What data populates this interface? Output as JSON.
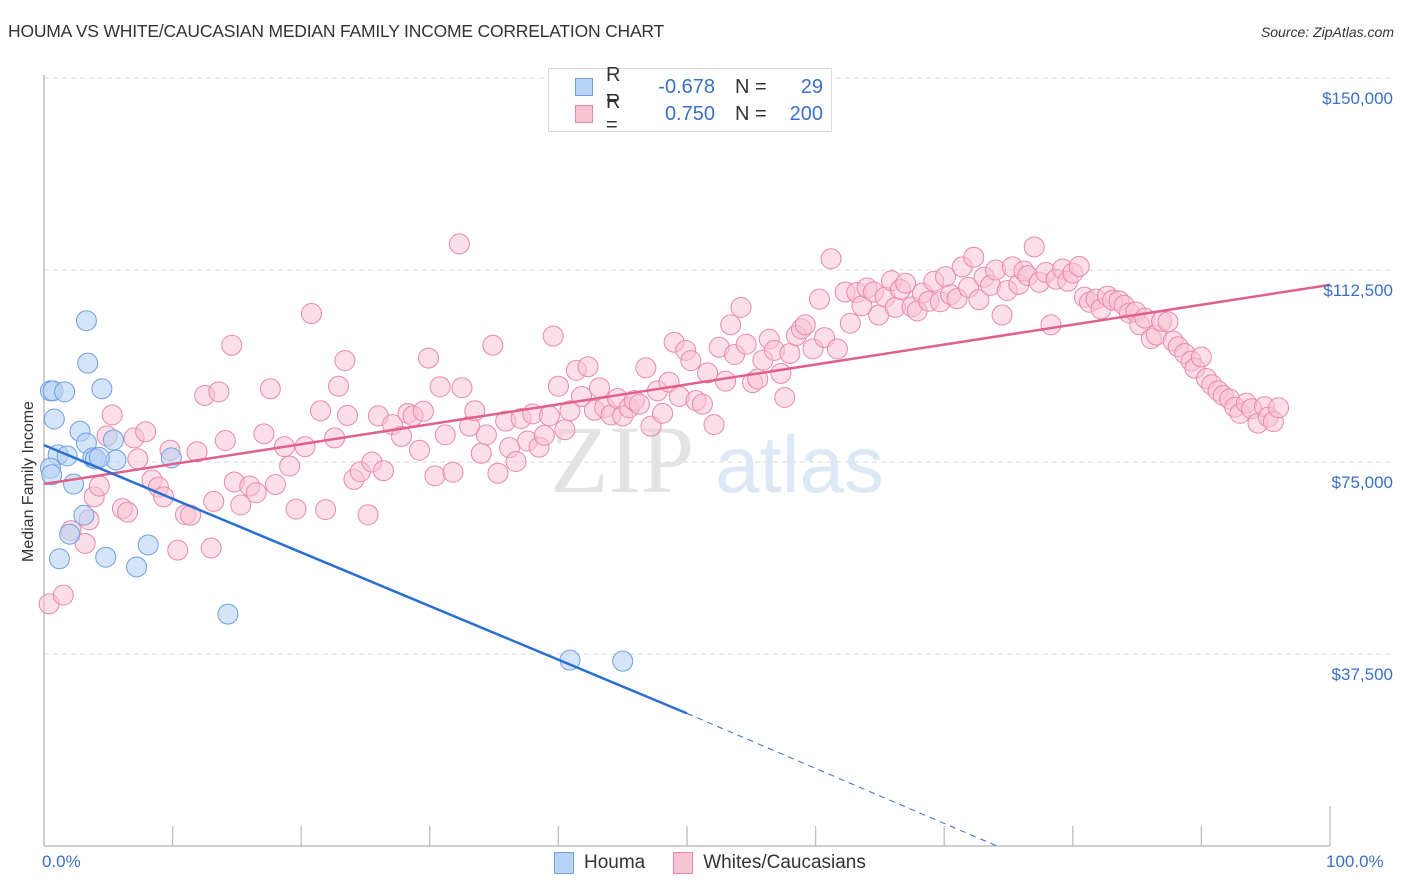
{
  "header": {
    "title": "HOUMA VS WHITE/CAUCASIAN MEDIAN FAMILY INCOME CORRELATION CHART",
    "source": "Source: ZipAtlas.com"
  },
  "legend_top": [
    {
      "r_label": "R =",
      "r_value": "-0.678",
      "n_label": "N =",
      "n_value": "29"
    },
    {
      "r_label": "R =",
      "r_value": "0.750",
      "n_label": "N =",
      "n_value": "200"
    }
  ],
  "legend_bottom": [
    "Houma",
    "Whites/Caucasians"
  ],
  "watermark": {
    "zip": "ZIP",
    "atlas": "atlas"
  },
  "colors": {
    "houma_fill": "#b8d2f5",
    "houma_stroke": "#6f9fe0",
    "houma_line": "#2a6fd0",
    "white_fill": "#f8c3d3",
    "white_stroke": "#e889a8",
    "white_line": "#e0608a",
    "tick_text": "#3a70c8"
  },
  "chart_data": {
    "type": "scatter",
    "title": "HOUMA VS WHITE/CAUCASIAN MEDIAN FAMILY INCOME CORRELATION CHART",
    "xlabel": "",
    "ylabel": "Median Family Income",
    "xlim": [
      0,
      100
    ],
    "ylim": [
      0,
      155000
    ],
    "x_tick_labels": [
      "0.0%",
      "100.0%"
    ],
    "y_ticks": [
      37500,
      75000,
      112500,
      150000
    ],
    "y_tick_labels": [
      "$37,500",
      "$75,000",
      "$112,500",
      "$150,000"
    ],
    "grid": true,
    "legend_placement": "top-center",
    "series": [
      {
        "name": "Houma",
        "R": -0.678,
        "N": 29,
        "trend": {
          "x0": 0,
          "y0": 78300,
          "x1": 50,
          "y1": 25900,
          "dashed_to_x": 74.1,
          "dashed_to_y": 0
        },
        "points": [
          [
            3.3,
            102600
          ],
          [
            3.4,
            94300
          ],
          [
            0.5,
            88900
          ],
          [
            0.7,
            88900
          ],
          [
            1.6,
            88700
          ],
          [
            4.5,
            89300
          ],
          [
            0.8,
            83400
          ],
          [
            2.8,
            81000
          ],
          [
            5.4,
            79300
          ],
          [
            3.3,
            78700
          ],
          [
            1.1,
            76400
          ],
          [
            1.8,
            76200
          ],
          [
            3.8,
            75800
          ],
          [
            4.0,
            75600
          ],
          [
            5.6,
            75400
          ],
          [
            9.9,
            75800
          ],
          [
            0.5,
            73800
          ],
          [
            2.3,
            70700
          ],
          [
            3.1,
            64600
          ],
          [
            2.0,
            60900
          ],
          [
            4.8,
            56400
          ],
          [
            1.2,
            56100
          ],
          [
            7.2,
            54500
          ],
          [
            8.1,
            58800
          ],
          [
            14.3,
            45300
          ],
          [
            40.9,
            36300
          ],
          [
            45.0,
            36100
          ],
          [
            0.6,
            72500
          ],
          [
            4.3,
            75900
          ]
        ]
      },
      {
        "name": "Whites/Caucasians",
        "R": 0.75,
        "N": 200,
        "trend": {
          "x0": 0,
          "y0": 70700,
          "x1": 100,
          "y1": 109600
        },
        "points": [
          [
            0.4,
            47300
          ],
          [
            1.5,
            49000
          ],
          [
            2.1,
            61600
          ],
          [
            3.2,
            59100
          ],
          [
            3.5,
            63700
          ],
          [
            3.9,
            68200
          ],
          [
            4.3,
            70300
          ],
          [
            4.9,
            80100
          ],
          [
            5.3,
            84200
          ],
          [
            6.1,
            65900
          ],
          [
            6.5,
            65200
          ],
          [
            7.0,
            79700
          ],
          [
            7.3,
            75600
          ],
          [
            7.9,
            80900
          ],
          [
            8.4,
            71500
          ],
          [
            8.9,
            70100
          ],
          [
            9.3,
            68200
          ],
          [
            9.8,
            77300
          ],
          [
            10.4,
            57800
          ],
          [
            11.0,
            64700
          ],
          [
            11.4,
            64600
          ],
          [
            11.9,
            77000
          ],
          [
            12.5,
            88000
          ],
          [
            13.0,
            58200
          ],
          [
            13.2,
            67300
          ],
          [
            13.6,
            88700
          ],
          [
            14.1,
            79200
          ],
          [
            14.6,
            97800
          ],
          [
            14.8,
            71100
          ],
          [
            15.3,
            66600
          ],
          [
            16.0,
            70300
          ],
          [
            16.5,
            69000
          ],
          [
            17.1,
            80500
          ],
          [
            17.6,
            89300
          ],
          [
            18.0,
            70600
          ],
          [
            18.7,
            78000
          ],
          [
            19.1,
            74200
          ],
          [
            19.6,
            65800
          ],
          [
            20.3,
            78000
          ],
          [
            20.8,
            104000
          ],
          [
            21.5,
            85000
          ],
          [
            21.9,
            65700
          ],
          [
            22.6,
            79700
          ],
          [
            22.9,
            89800
          ],
          [
            23.4,
            94800
          ],
          [
            23.6,
            84100
          ],
          [
            24.1,
            71600
          ],
          [
            24.6,
            73100
          ],
          [
            25.2,
            64700
          ],
          [
            25.5,
            75000
          ],
          [
            26.0,
            84000
          ],
          [
            26.4,
            73300
          ],
          [
            27.1,
            82300
          ],
          [
            27.8,
            80000
          ],
          [
            28.3,
            84500
          ],
          [
            28.7,
            84000
          ],
          [
            29.2,
            77300
          ],
          [
            29.5,
            84900
          ],
          [
            29.9,
            95300
          ],
          [
            30.4,
            72300
          ],
          [
            30.8,
            89700
          ],
          [
            31.2,
            80300
          ],
          [
            31.8,
            73000
          ],
          [
            32.3,
            117600
          ],
          [
            32.5,
            89500
          ],
          [
            33.1,
            82000
          ],
          [
            33.5,
            85000
          ],
          [
            34.0,
            76700
          ],
          [
            34.4,
            80300
          ],
          [
            34.9,
            97800
          ],
          [
            35.3,
            72800
          ],
          [
            35.9,
            83000
          ],
          [
            36.2,
            77800
          ],
          [
            36.7,
            75100
          ],
          [
            37.1,
            83500
          ],
          [
            37.6,
            79100
          ],
          [
            38.0,
            84400
          ],
          [
            38.5,
            77900
          ],
          [
            38.9,
            80200
          ],
          [
            39.3,
            84000
          ],
          [
            39.6,
            99600
          ],
          [
            40.0,
            89800
          ],
          [
            40.5,
            81300
          ],
          [
            40.9,
            85000
          ],
          [
            41.4,
            92900
          ],
          [
            41.8,
            87800
          ],
          [
            42.3,
            93600
          ],
          [
            42.8,
            85100
          ],
          [
            43.2,
            89500
          ],
          [
            43.6,
            85600
          ],
          [
            44.1,
            84200
          ],
          [
            44.6,
            87400
          ],
          [
            45.0,
            84000
          ],
          [
            45.5,
            85600
          ],
          [
            45.9,
            87000
          ],
          [
            46.3,
            86300
          ],
          [
            46.8,
            93400
          ],
          [
            47.2,
            82000
          ],
          [
            47.7,
            88900
          ],
          [
            48.1,
            84500
          ],
          [
            48.6,
            90600
          ],
          [
            49.0,
            98400
          ],
          [
            49.4,
            87800
          ],
          [
            49.9,
            96800
          ],
          [
            50.3,
            94800
          ],
          [
            50.7,
            87000
          ],
          [
            51.2,
            86300
          ],
          [
            51.6,
            92400
          ],
          [
            52.1,
            82300
          ],
          [
            52.5,
            97400
          ],
          [
            53.0,
            90800
          ],
          [
            53.4,
            101800
          ],
          [
            53.7,
            96000
          ],
          [
            54.2,
            105200
          ],
          [
            54.6,
            98000
          ],
          [
            55.1,
            90500
          ],
          [
            55.5,
            91200
          ],
          [
            55.9,
            94900
          ],
          [
            56.4,
            99000
          ],
          [
            56.8,
            96800
          ],
          [
            57.3,
            92300
          ],
          [
            57.6,
            87600
          ],
          [
            58.0,
            96200
          ],
          [
            58.5,
            99700
          ],
          [
            58.9,
            101000
          ],
          [
            59.2,
            101800
          ],
          [
            59.8,
            97100
          ],
          [
            60.3,
            106800
          ],
          [
            60.7,
            99300
          ],
          [
            61.2,
            114700
          ],
          [
            61.7,
            97100
          ],
          [
            62.3,
            108200
          ],
          [
            62.7,
            102100
          ],
          [
            63.2,
            108100
          ],
          [
            63.6,
            105500
          ],
          [
            64.0,
            109000
          ],
          [
            64.5,
            108200
          ],
          [
            64.9,
            103700
          ],
          [
            65.4,
            107200
          ],
          [
            65.9,
            110400
          ],
          [
            66.2,
            105200
          ],
          [
            66.6,
            108700
          ],
          [
            67.0,
            109900
          ],
          [
            67.5,
            105300
          ],
          [
            67.9,
            104500
          ],
          [
            68.3,
            108000
          ],
          [
            68.8,
            106400
          ],
          [
            69.2,
            110300
          ],
          [
            69.7,
            106300
          ],
          [
            70.1,
            111200
          ],
          [
            70.5,
            107700
          ],
          [
            71.0,
            106900
          ],
          [
            71.4,
            113100
          ],
          [
            71.9,
            109100
          ],
          [
            72.3,
            115000
          ],
          [
            72.7,
            106700
          ],
          [
            73.1,
            111100
          ],
          [
            73.6,
            109500
          ],
          [
            74.0,
            112500
          ],
          [
            74.5,
            103700
          ],
          [
            74.9,
            108500
          ],
          [
            75.3,
            113100
          ],
          [
            75.8,
            109700
          ],
          [
            76.2,
            112300
          ],
          [
            76.5,
            111400
          ],
          [
            77.0,
            117000
          ],
          [
            77.4,
            110100
          ],
          [
            77.9,
            112000
          ],
          [
            78.3,
            101800
          ],
          [
            78.7,
            110700
          ],
          [
            79.2,
            112700
          ],
          [
            79.6,
            110300
          ],
          [
            80.0,
            111900
          ],
          [
            80.5,
            113200
          ],
          [
            80.9,
            107200
          ],
          [
            81.3,
            106200
          ],
          [
            81.8,
            106800
          ],
          [
            82.2,
            104900
          ],
          [
            82.7,
            107400
          ],
          [
            83.1,
            106600
          ],
          [
            83.6,
            106500
          ],
          [
            84.0,
            105600
          ],
          [
            84.4,
            104100
          ],
          [
            84.9,
            104300
          ],
          [
            85.2,
            101800
          ],
          [
            85.6,
            103100
          ],
          [
            86.1,
            99100
          ],
          [
            86.5,
            99800
          ],
          [
            86.9,
            102500
          ],
          [
            87.4,
            102400
          ],
          [
            87.8,
            98600
          ],
          [
            88.2,
            97500
          ],
          [
            88.7,
            96200
          ],
          [
            89.2,
            94700
          ],
          [
            89.5,
            93300
          ],
          [
            90.0,
            95500
          ],
          [
            90.4,
            91300
          ],
          [
            90.8,
            90100
          ],
          [
            91.3,
            88900
          ],
          [
            91.7,
            88000
          ],
          [
            92.2,
            87300
          ],
          [
            92.6,
            85700
          ],
          [
            93.0,
            84500
          ],
          [
            93.5,
            86500
          ],
          [
            93.9,
            85400
          ],
          [
            94.4,
            82600
          ],
          [
            94.9,
            85800
          ],
          [
            95.2,
            83800
          ],
          [
            95.6,
            82900
          ],
          [
            96.0,
            85600
          ]
        ]
      }
    ]
  }
}
